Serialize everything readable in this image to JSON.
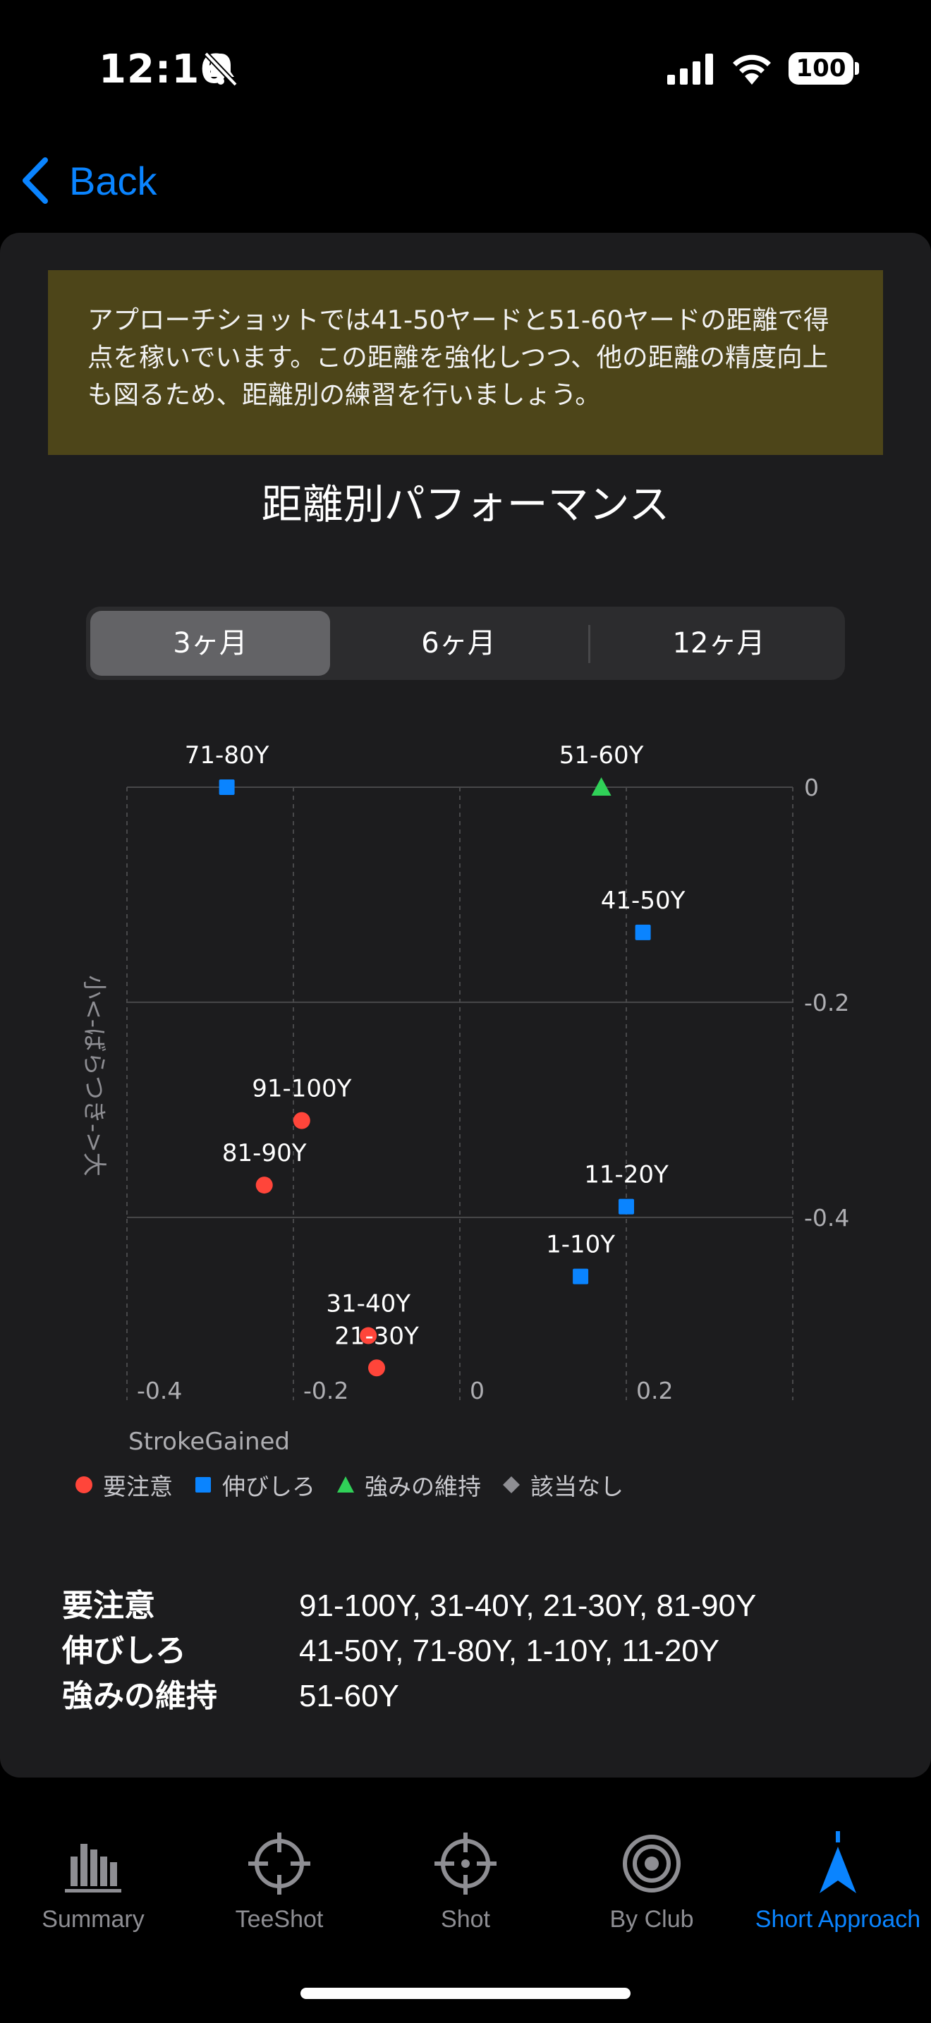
{
  "status_bar": {
    "time": "12:16",
    "battery": "100"
  },
  "nav": {
    "back_label": "Back"
  },
  "banner": {
    "text": "アプローチショットでは41-50ヤードと51-60ヤードの距離で得点を稼いでいます。この距離を強化しつつ、他の距離の精度向上も図るため、距離別の練習を行いましょう。"
  },
  "chart_title": "距離別パフォーマンス",
  "period_tabs": {
    "items": [
      "3ヶ月",
      "6ヶ月",
      "12ヶ月"
    ],
    "selected": "3ヶ月"
  },
  "colors": {
    "attention": "#ff453a",
    "growth": "#0a84ff",
    "strength": "#30d158",
    "none": "#8e8e93",
    "banner_bg": "#4d4519",
    "accent": "#0a84ff"
  },
  "chart_data": {
    "type": "scatter",
    "title": "",
    "xlabel": "StrokeGained",
    "ylabel": "小<-ばらつき->大",
    "xlim": [
      -0.4,
      0.4
    ],
    "ylim": [
      -0.57,
      0
    ],
    "x_ticks": [
      "-0.4",
      "-0.2",
      "0",
      "0.2"
    ],
    "y_ticks": [
      "0",
      "-0.2",
      "-0.4"
    ],
    "grid": true,
    "legend_position": "bottom",
    "legend": [
      {
        "name": "要注意",
        "shape": "circle",
        "color": "#ff453a"
      },
      {
        "name": "伸びしろ",
        "shape": "square",
        "color": "#0a84ff"
      },
      {
        "name": "強みの維持",
        "shape": "triangle",
        "color": "#30d158"
      },
      {
        "name": "該当なし",
        "shape": "diamond",
        "color": "#8e8e93"
      }
    ],
    "points": [
      {
        "label": "71-80Y",
        "x": -0.28,
        "y": 0.0,
        "group": "伸びしろ"
      },
      {
        "label": "51-60Y",
        "x": 0.17,
        "y": 0.0,
        "group": "強みの維持"
      },
      {
        "label": "41-50Y",
        "x": 0.22,
        "y": -0.135,
        "group": "伸びしろ"
      },
      {
        "label": "91-100Y",
        "x": -0.19,
        "y": -0.31,
        "group": "要注意"
      },
      {
        "label": "81-90Y",
        "x": -0.235,
        "y": -0.37,
        "group": "要注意"
      },
      {
        "label": "11-20Y",
        "x": 0.2,
        "y": -0.39,
        "group": "伸びしろ"
      },
      {
        "label": "1-10Y",
        "x": 0.145,
        "y": -0.455,
        "group": "伸びしろ"
      },
      {
        "label": "31-40Y",
        "x": -0.11,
        "y": -0.51,
        "group": "要注意"
      },
      {
        "label": "21-30Y",
        "x": -0.1,
        "y": -0.54,
        "group": "要注意"
      }
    ]
  },
  "summary": [
    {
      "label": "要注意",
      "value": "91-100Y, 31-40Y, 21-30Y, 81-90Y"
    },
    {
      "label": "伸びしろ",
      "value": "41-50Y, 71-80Y, 1-10Y, 11-20Y"
    },
    {
      "label": "強みの維持",
      "value": "51-60Y"
    }
  ],
  "tabbar": {
    "items": [
      {
        "label": "Summary",
        "icon": "bar-chart-icon"
      },
      {
        "label": "TeeShot",
        "icon": "crosshair-icon"
      },
      {
        "label": "Shot",
        "icon": "crosshair-icon"
      },
      {
        "label": "By Club",
        "icon": "target-icon"
      },
      {
        "label": "Short Approach",
        "icon": "flag-pin-icon"
      }
    ],
    "selected": "Short Approach"
  }
}
